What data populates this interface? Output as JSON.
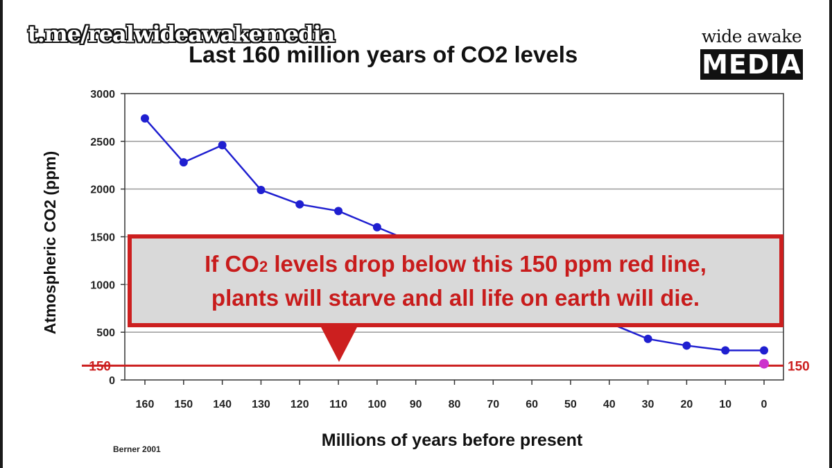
{
  "watermark": "t.me/realwideawakemedia",
  "logo": {
    "top": "wide awake",
    "bottom": "MEDIA"
  },
  "source": "Berner 2001",
  "callout": {
    "line1_before": "If CO",
    "line1_sub": "2",
    "line1_after": " levels drop below this 150 ppm red line,",
    "line2": "plants will starve and all life on earth will die."
  },
  "colors": {
    "series": "#1f1fd0",
    "threshold": "#cc1f1f",
    "present_marker": "#cc33cc",
    "callout_bg": "#d9d9d9"
  },
  "chart_data": {
    "type": "line",
    "title": "Last 160 million years of CO2 levels",
    "xlabel": "Millions of years before present",
    "ylabel": "Atmospheric CO2 (ppm)",
    "x_reversed": true,
    "xlim": [
      160,
      0
    ],
    "ylim": [
      0,
      3000
    ],
    "xticks": [
      "160",
      "150",
      "140",
      "130",
      "120",
      "110",
      "100",
      "90",
      "80",
      "70",
      "60",
      "50",
      "40",
      "30",
      "20",
      "10",
      "0"
    ],
    "yticks": [
      "3000",
      "2500",
      "2000",
      "1500",
      "1000",
      "500",
      "0"
    ],
    "grid": "horizontal",
    "series": [
      {
        "x": [
          160,
          150,
          140,
          130,
          120,
          110,
          100,
          30,
          20,
          10,
          0
        ],
        "y": [
          2740,
          2280,
          2460,
          1990,
          1840,
          1770,
          1600,
          430,
          360,
          310,
          310
        ]
      }
    ],
    "threshold": {
      "y": 150,
      "label": "150"
    },
    "present_marker": {
      "x": 0,
      "y": 170
    }
  }
}
